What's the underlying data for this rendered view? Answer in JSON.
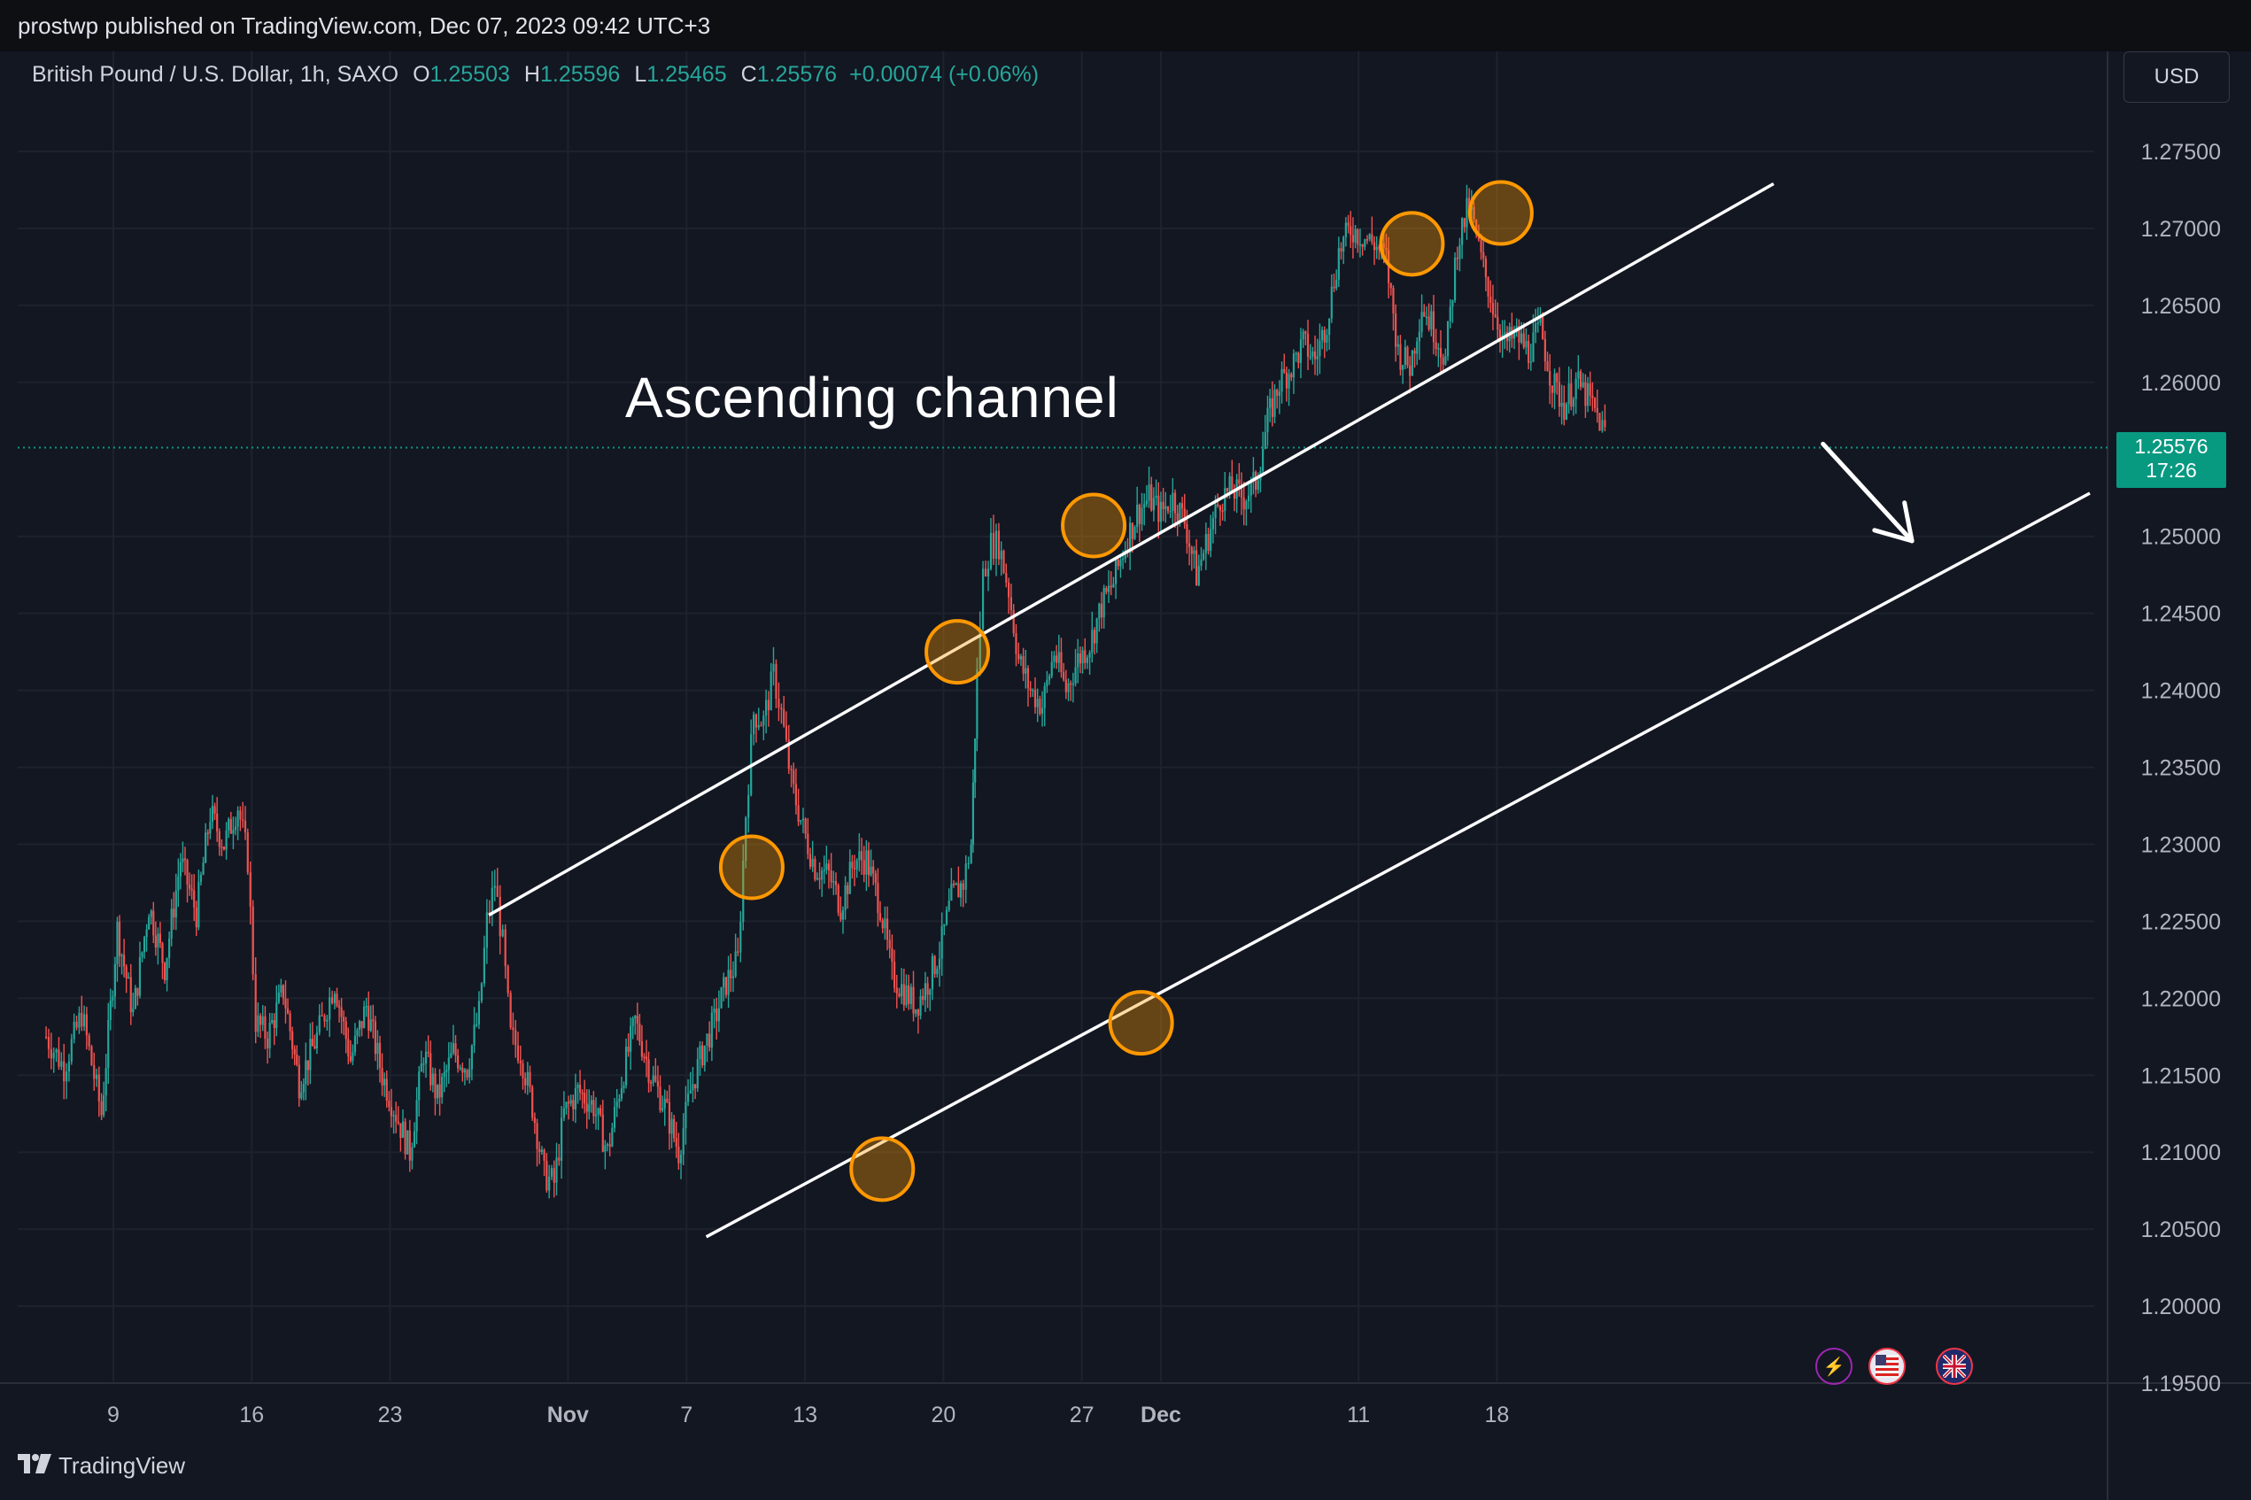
{
  "header": {
    "publish_line": "prostwp published on TradingView.com, Dec 07, 2023 09:42 UTC+3"
  },
  "legend": {
    "symbol": "British Pound / U.S. Dollar, 1h, SAXO",
    "o_label": "O",
    "o_value": "1.25503",
    "h_label": "H",
    "h_value": "1.25596",
    "l_label": "L",
    "l_value": "1.25465",
    "c_label": "C",
    "c_value": "1.25576",
    "change": "+0.00074 (+0.06%)"
  },
  "currency_button": "USD",
  "price_tag": {
    "price": "1.25576",
    "countdown": "17:26"
  },
  "annotation": "Ascending channel",
  "footer": {
    "brand": "TradingView"
  },
  "events": [
    {
      "icon": "lightning-icon",
      "color": "#9c27b0"
    },
    {
      "icon": "us-flag-icon",
      "color": "#f23645"
    },
    {
      "icon": "uk-flag-icon",
      "color": "#f23645"
    }
  ],
  "chart_data": {
    "type": "candlestick",
    "symbol": "GBPUSD",
    "timeframe": "1h",
    "up_color": "#26a69a",
    "down_color": "#ef5350",
    "ylim": [
      1.1945,
      1.2775
    ],
    "y_ticks": [
      1.275,
      1.27,
      1.265,
      1.26,
      1.25,
      1.245,
      1.24,
      1.235,
      1.23,
      1.225,
      1.22,
      1.215,
      1.21,
      1.205,
      1.2,
      1.195
    ],
    "y_tick_labels": [
      "1.27500",
      "1.27000",
      "1.26500",
      "1.26000",
      "1.25000",
      "1.24500",
      "1.24000",
      "1.23500",
      "1.23000",
      "1.22500",
      "1.22000",
      "1.21500",
      "1.21000",
      "1.20500",
      "1.20000",
      "1.19500"
    ],
    "x_ticks": [
      {
        "label": "9",
        "day": 0,
        "bold": false
      },
      {
        "label": "16",
        "day": 7,
        "bold": false
      },
      {
        "label": "23",
        "day": 14,
        "bold": false
      },
      {
        "label": "Nov",
        "day": 23,
        "bold": true
      },
      {
        "label": "7",
        "day": 29,
        "bold": false
      },
      {
        "label": "13",
        "day": 35,
        "bold": false
      },
      {
        "label": "20",
        "day": 42,
        "bold": false
      },
      {
        "label": "27",
        "day": 49,
        "bold": false
      },
      {
        "label": "Dec",
        "day": 53,
        "bold": true
      },
      {
        "label": "11",
        "day": 63,
        "bold": false
      },
      {
        "label": "18",
        "day": 70,
        "bold": false
      }
    ],
    "x_range_days": [
      -3.4,
      71
    ],
    "path_points": [
      [
        -3.4,
        1.2175
      ],
      [
        -2.5,
        1.2155
      ],
      [
        -1.6,
        1.219
      ],
      [
        -0.6,
        1.2125
      ],
      [
        0.2,
        1.2245
      ],
      [
        1.0,
        1.219
      ],
      [
        1.8,
        1.226
      ],
      [
        2.6,
        1.222
      ],
      [
        3.4,
        1.229
      ],
      [
        4.2,
        1.2255
      ],
      [
        4.9,
        1.232
      ],
      [
        5.6,
        1.23
      ],
      [
        6.3,
        1.2325
      ],
      [
        6.8,
        1.229
      ],
      [
        7.2,
        1.2185
      ],
      [
        7.8,
        1.2175
      ],
      [
        8.6,
        1.2205
      ],
      [
        9.4,
        1.2145
      ],
      [
        10.3,
        1.2175
      ],
      [
        11.2,
        1.221
      ],
      [
        12.0,
        1.216
      ],
      [
        12.8,
        1.2195
      ],
      [
        13.6,
        1.215
      ],
      [
        14.3,
        1.2125
      ],
      [
        15.0,
        1.21
      ],
      [
        15.7,
        1.2165
      ],
      [
        16.4,
        1.2135
      ],
      [
        17.2,
        1.2165
      ],
      [
        17.9,
        1.2155
      ],
      [
        18.5,
        1.219
      ],
      [
        18.9,
        1.225
      ],
      [
        19.3,
        1.2275
      ],
      [
        19.7,
        1.2235
      ],
      [
        20.1,
        1.2175
      ],
      [
        20.6,
        1.2165
      ],
      [
        21.2,
        1.213
      ],
      [
        21.8,
        1.2085
      ],
      [
        22.3,
        1.208
      ],
      [
        22.8,
        1.2125
      ],
      [
        23.5,
        1.214
      ],
      [
        24.3,
        1.213
      ],
      [
        25.0,
        1.21
      ],
      [
        25.6,
        1.214
      ],
      [
        26.4,
        1.2185
      ],
      [
        27.2,
        1.215
      ],
      [
        27.9,
        1.213
      ],
      [
        28.6,
        1.21
      ],
      [
        29.2,
        1.214
      ],
      [
        29.8,
        1.2165
      ],
      [
        30.4,
        1.2185
      ],
      [
        31.0,
        1.221
      ],
      [
        31.6,
        1.2225
      ],
      [
        32.0,
        1.232
      ],
      [
        32.4,
        1.2385
      ],
      [
        32.9,
        1.238
      ],
      [
        33.4,
        1.241
      ],
      [
        33.8,
        1.2385
      ],
      [
        34.3,
        1.234
      ],
      [
        34.9,
        1.231
      ],
      [
        35.5,
        1.2285
      ],
      [
        36.2,
        1.228
      ],
      [
        36.8,
        1.226
      ],
      [
        37.5,
        1.229
      ],
      [
        38.1,
        1.229
      ],
      [
        38.8,
        1.226
      ],
      [
        39.4,
        1.2215
      ],
      [
        40.0,
        1.2205
      ],
      [
        40.6,
        1.2195
      ],
      [
        41.2,
        1.221
      ],
      [
        41.8,
        1.223
      ],
      [
        42.4,
        1.2265
      ],
      [
        43.0,
        1.2275
      ],
      [
        43.4,
        1.23
      ],
      [
        43.7,
        1.241
      ],
      [
        44.0,
        1.2475
      ],
      [
        44.4,
        1.2495
      ],
      [
        44.8,
        1.2495
      ],
      [
        45.3,
        1.2465
      ],
      [
        45.8,
        1.242
      ],
      [
        46.4,
        1.24
      ],
      [
        47.0,
        1.239
      ],
      [
        47.6,
        1.2425
      ],
      [
        48.2,
        1.24
      ],
      [
        48.8,
        1.242
      ],
      [
        49.4,
        1.243
      ],
      [
        50.0,
        1.2455
      ],
      [
        50.6,
        1.247
      ],
      [
        51.2,
        1.2495
      ],
      [
        51.8,
        1.2515
      ],
      [
        52.4,
        1.2525
      ],
      [
        53.0,
        1.2515
      ],
      [
        53.6,
        1.2525
      ],
      [
        54.2,
        1.251
      ],
      [
        54.8,
        1.2475
      ],
      [
        55.4,
        1.25
      ],
      [
        56.0,
        1.2525
      ],
      [
        56.6,
        1.253
      ],
      [
        57.2,
        1.2525
      ],
      [
        57.8,
        1.2535
      ],
      [
        58.4,
        1.2575
      ],
      [
        59.0,
        1.26
      ],
      [
        59.6,
        1.261
      ],
      [
        60.2,
        1.2625
      ],
      [
        60.8,
        1.2615
      ],
      [
        61.4,
        1.264
      ],
      [
        62.0,
        1.2685
      ],
      [
        62.6,
        1.27
      ],
      [
        63.2,
        1.2695
      ],
      [
        63.8,
        1.269
      ],
      [
        64.4,
        1.268
      ],
      [
        65.0,
        1.262
      ],
      [
        65.6,
        1.261
      ],
      [
        66.2,
        1.265
      ],
      [
        66.8,
        1.2635
      ],
      [
        67.4,
        1.2615
      ],
      [
        68.0,
        1.269
      ],
      [
        68.6,
        1.2715
      ],
      [
        69.2,
        1.268
      ],
      [
        69.8,
        1.265
      ],
      [
        70.4,
        1.2625
      ],
      [
        71.0,
        1.263
      ],
      [
        71.6,
        1.262
      ],
      [
        72.2,
        1.2635
      ],
      [
        72.8,
        1.26
      ],
      [
        73.4,
        1.2585
      ],
      [
        74.0,
        1.26
      ],
      [
        74.6,
        1.259
      ],
      [
        75.2,
        1.2575
      ],
      [
        75.6,
        1.2562
      ]
    ],
    "last_price": 1.25576,
    "drawings": {
      "upper_channel_line": [
        [
          19.0,
          1.2254
        ],
        [
          84.0,
          1.2729
        ]
      ],
      "lower_channel_line": [
        [
          30.0,
          1.2045
        ],
        [
          100.0,
          1.2528
        ]
      ],
      "touch_points": [
        [
          32.3,
          1.2285
        ],
        [
          42.7,
          1.2425
        ],
        [
          49.6,
          1.2507
        ],
        [
          65.7,
          1.269
        ],
        [
          70.2,
          1.271
        ],
        [
          38.9,
          1.2089
        ],
        [
          52.0,
          1.2184
        ]
      ],
      "arrow": [
        [
          86.5,
          1.256
        ],
        [
          91.0,
          1.2497
        ]
      ]
    }
  }
}
